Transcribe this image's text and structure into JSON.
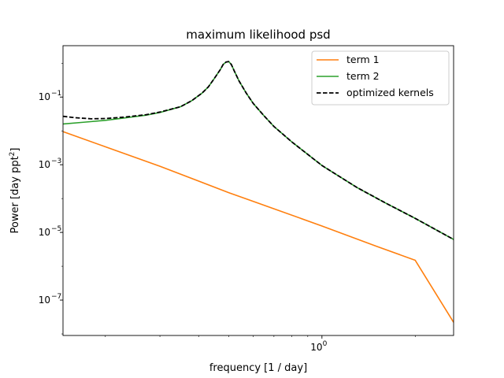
{
  "chart_data": {
    "type": "line",
    "title": "maximum likelihood psd",
    "xlabel": "frequency [1 / day]",
    "ylabel_main": "Power [day ppt",
    "ylabel_sup": "2",
    "ylabel_close": "]",
    "xscale": "log",
    "yscale": "log",
    "xlim": [
      0.146,
      2.66
    ],
    "ylim": [
      9e-09,
      3.3
    ],
    "xticks": [
      {
        "value": 1.0,
        "label_base": "10",
        "label_exp": "0"
      }
    ],
    "yticks": [
      {
        "value": 0.1,
        "label_base": "10",
        "label_exp": "−1"
      },
      {
        "value": 0.001,
        "label_base": "10",
        "label_exp": "−3"
      },
      {
        "value": 1e-05,
        "label_base": "10",
        "label_exp": "−5"
      },
      {
        "value": 1e-07,
        "label_base": "10",
        "label_exp": "−7"
      }
    ],
    "series": [
      {
        "name": "term 1",
        "color": "#ff7f0e",
        "style": "solid",
        "x": [
          0.146,
          0.2,
          0.3,
          0.5,
          0.7,
          1.0,
          1.5,
          2.0,
          2.66
        ],
        "y": [
          0.0095,
          0.0034,
          0.0009,
          0.00015,
          5e-05,
          1.55e-05,
          3.9e-06,
          1.5e-06,
          2.2e-08
        ]
      },
      {
        "name": "term 2",
        "color": "#2ca02c",
        "style": "solid",
        "x": [
          0.146,
          0.17,
          0.2,
          0.23,
          0.27,
          0.3,
          0.35,
          0.38,
          0.41,
          0.43,
          0.45,
          0.47,
          0.48,
          0.49,
          0.5,
          0.51,
          0.52,
          0.54,
          0.57,
          0.6,
          0.65,
          0.7,
          0.8,
          1.0,
          1.3,
          1.6,
          2.0,
          2.66
        ],
        "y": [
          0.016,
          0.018,
          0.0205,
          0.024,
          0.029,
          0.035,
          0.052,
          0.078,
          0.13,
          0.2,
          0.36,
          0.65,
          0.92,
          1.08,
          1.12,
          0.92,
          0.62,
          0.3,
          0.13,
          0.065,
          0.028,
          0.0135,
          0.0047,
          0.00095,
          0.00021,
          7.5e-05,
          2.6e-05,
          6.2e-06
        ]
      },
      {
        "name": "optimized kernels",
        "color": "#000000",
        "style": "dashed",
        "x": [
          0.146,
          0.16,
          0.18,
          0.2,
          0.23,
          0.27,
          0.3,
          0.35,
          0.38,
          0.41,
          0.43,
          0.45,
          0.47,
          0.48,
          0.49,
          0.5,
          0.51,
          0.52,
          0.54,
          0.57,
          0.6,
          0.65,
          0.7,
          0.8,
          1.0,
          1.3,
          1.6,
          2.0,
          2.66
        ],
        "y": [
          0.027,
          0.0245,
          0.0228,
          0.0232,
          0.0255,
          0.03,
          0.036,
          0.052,
          0.078,
          0.13,
          0.2,
          0.36,
          0.65,
          0.92,
          1.08,
          1.12,
          0.92,
          0.62,
          0.3,
          0.13,
          0.065,
          0.028,
          0.0135,
          0.0047,
          0.00095,
          0.00021,
          7.5e-05,
          2.6e-05,
          6.2e-06
        ]
      }
    ],
    "legend_position": "top-right"
  }
}
